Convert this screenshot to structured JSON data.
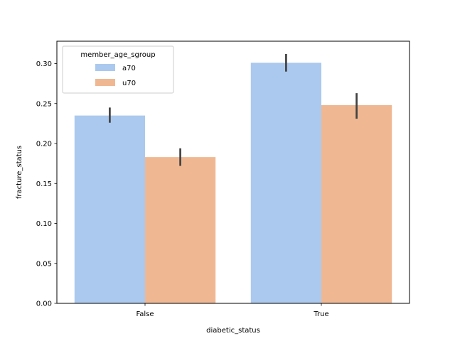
{
  "chart_data": {
    "type": "bar",
    "title": "",
    "xlabel": "diabetic_status",
    "ylabel": "fracture_status",
    "categories": [
      "False",
      "True"
    ],
    "ylim": [
      0,
      0.328
    ],
    "yticks": [
      "0.00",
      "0.05",
      "0.10",
      "0.15",
      "0.20",
      "0.25",
      "0.30"
    ],
    "legend": {
      "title": "member_age_sgroup",
      "placement": "upper-left"
    },
    "grid": false,
    "series": [
      {
        "name": "a70",
        "color": "#abc9ee",
        "values": [
          0.235,
          0.301
        ],
        "ci": [
          [
            0.226,
            0.245
          ],
          [
            0.29,
            0.312
          ]
        ]
      },
      {
        "name": "u70",
        "color": "#f0b892",
        "values": [
          0.183,
          0.248
        ],
        "ci": [
          [
            0.172,
            0.194
          ],
          [
            0.231,
            0.263
          ]
        ]
      }
    ]
  }
}
